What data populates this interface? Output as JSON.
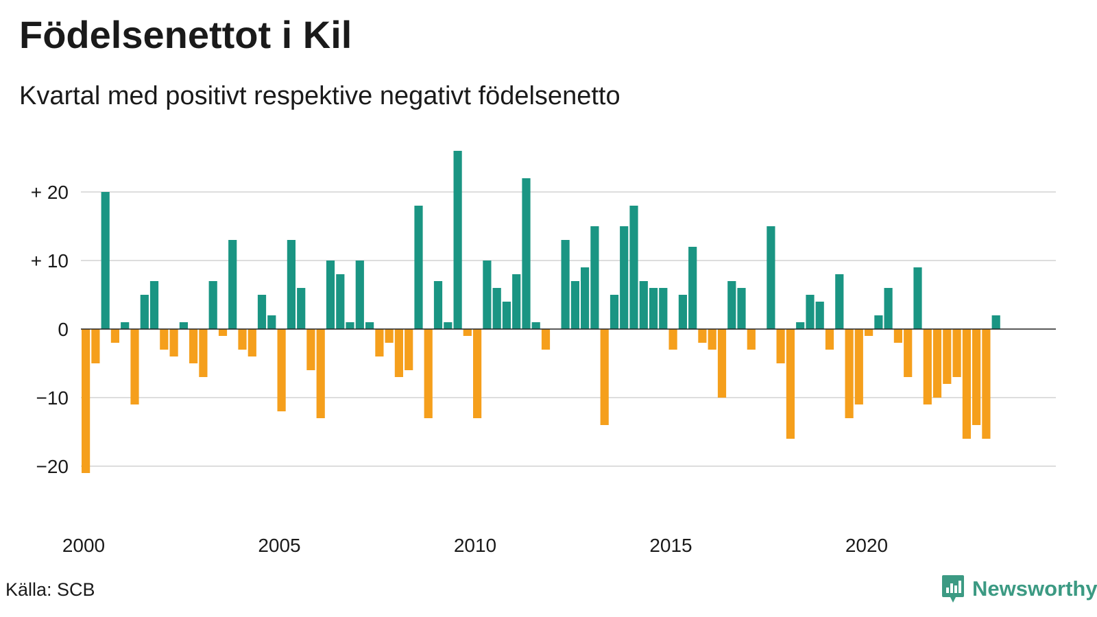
{
  "title": "Födelsenettot i Kil",
  "subtitle": "Kvartal med positivt respektive negativt födelsenetto",
  "source": "Källa: SCB",
  "brand": "Newsworthy",
  "colors": {
    "positive": "#1a9583",
    "negative": "#f59f1c",
    "grid": "#dddddd",
    "zero_line": "#222222",
    "brand": "#3c9a83"
  },
  "chart_data": {
    "type": "bar",
    "title": "Födelsenettot i Kil",
    "subtitle": "Kvartal med positivt respektive negativt födelsenetto",
    "x_start": 2000,
    "x_end": 2024.75,
    "periods_per_year": 4,
    "ylim": [
      -26,
      26
    ],
    "y_ticks": [
      {
        "value": 20,
        "label": "+ 20"
      },
      {
        "value": 10,
        "label": "+ 10"
      },
      {
        "value": 0,
        "label": "0"
      },
      {
        "value": -10,
        "label": "−10"
      },
      {
        "value": -20,
        "label": "−20"
      }
    ],
    "x_ticks": [
      {
        "value": 2000,
        "label": "2000"
      },
      {
        "value": 2005,
        "label": "2005"
      },
      {
        "value": 2010,
        "label": "2010"
      },
      {
        "value": 2015,
        "label": "2015"
      },
      {
        "value": 2020,
        "label": "2020"
      }
    ],
    "grid": true,
    "values": [
      -21,
      -5,
      20,
      -2,
      1,
      -11,
      5,
      7,
      -3,
      -4,
      1,
      -5,
      -7,
      7,
      -1,
      13,
      -3,
      -4,
      5,
      2,
      -12,
      13,
      6,
      -6,
      -13,
      10,
      8,
      1,
      10,
      1,
      -4,
      -2,
      -7,
      -6,
      18,
      -13,
      7,
      1,
      26,
      -1,
      -13,
      10,
      6,
      4,
      8,
      22,
      1,
      -3,
      0,
      13,
      7,
      9,
      15,
      -14,
      5,
      15,
      18,
      7,
      6,
      6,
      -3,
      5,
      12,
      -2,
      -3,
      -10,
      7,
      6,
      -3,
      0,
      15,
      -5,
      -16,
      1,
      5,
      4,
      -3,
      8,
      -13,
      -11,
      -1,
      2,
      6,
      -2,
      -7,
      9,
      -11,
      -10,
      -8,
      -7,
      -16,
      -14,
      -16,
      2
    ]
  }
}
